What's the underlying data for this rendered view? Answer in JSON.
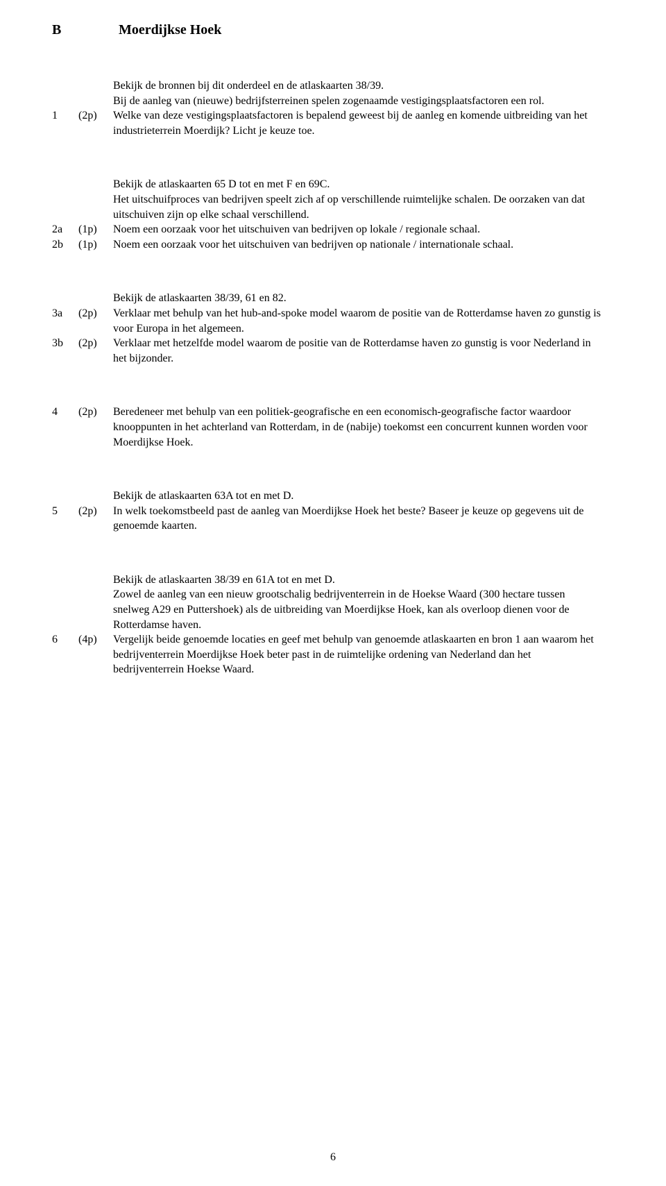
{
  "section_letter": "B",
  "section_title": "Moerdijkse Hoek",
  "page_number": "6",
  "block1": {
    "intro1": "Bekijk de bronnen bij dit onderdeel en de atlaskaarten 38/39.",
    "intro2": "Bij de aanleg van (nieuwe) bedrijfsterreinen spelen zogenaamde vestigingsplaatsfactoren een rol.",
    "q1_num": "1",
    "q1_pts": "(2p)",
    "q1_text": "Welke van deze vestigingsplaatsfactoren is bepalend geweest bij de aanleg en komende uitbreiding van het industrieterrein Moerdijk? Licht je keuze toe."
  },
  "block2": {
    "intro1": "Bekijk de atlaskaarten 65 D tot en met F en 69C.",
    "intro2": "Het uitschuifproces van bedrijven speelt zich af op verschillende ruimtelijke schalen. De oorzaken van dat uitschuiven zijn op elke schaal verschillend.",
    "q2a_num": "2a",
    "q2a_pts": "(1p)",
    "q2a_text": "Noem een oorzaak voor het uitschuiven van bedrijven op lokale / regionale schaal.",
    "q2b_num": "2b",
    "q2b_pts": "(1p)",
    "q2b_text": "Noem een oorzaak voor het uitschuiven van bedrijven op nationale / internationale schaal."
  },
  "block3": {
    "intro1": "Bekijk de atlaskaarten 38/39, 61 en 82.",
    "q3a_num": "3a",
    "q3a_pts": "(2p)",
    "q3a_text": "Verklaar met behulp van het hub-and-spoke model waarom de positie van de Rotterdamse haven zo gunstig is voor Europa in het algemeen.",
    "q3b_num": "3b",
    "q3b_pts": "(2p)",
    "q3b_text": "Verklaar met hetzelfde model waarom de positie van de Rotterdamse haven zo gunstig is voor Nederland in het bijzonder."
  },
  "block4": {
    "q4_num": "4",
    "q4_pts": "(2p)",
    "q4_text": "Beredeneer met behulp van een politiek-geografische en een economisch-geografische factor waardoor knooppunten in het achterland van Rotterdam, in de (nabije) toekomst een concurrent kunnen worden voor Moerdijkse Hoek."
  },
  "block5": {
    "intro1": "Bekijk de atlaskaarten 63A tot en met D.",
    "q5_num": "5",
    "q5_pts": "(2p)",
    "q5_text": "In welk toekomstbeeld past de aanleg van Moerdijkse Hoek het beste? Baseer je keuze op gegevens uit de genoemde kaarten."
  },
  "block6": {
    "intro1": "Bekijk de atlaskaarten 38/39 en 61A tot en met D.",
    "intro2": "Zowel de aanleg van een nieuw grootschalig bedrijventerrein in de Hoekse Waard (300 hectare tussen snelweg A29 en Puttershoek) als de uitbreiding van Moerdijkse Hoek, kan als overloop dienen voor de Rotterdamse haven.",
    "q6_num": "6",
    "q6_pts": "(4p)",
    "q6_text": "Vergelijk beide genoemde locaties en geef met behulp van genoemde atlaskaarten en bron 1 aan waarom het bedrijventerrein Moerdijkse Hoek beter past in de ruimtelijke ordening van Nederland dan het bedrijventerrein Hoekse Waard."
  }
}
